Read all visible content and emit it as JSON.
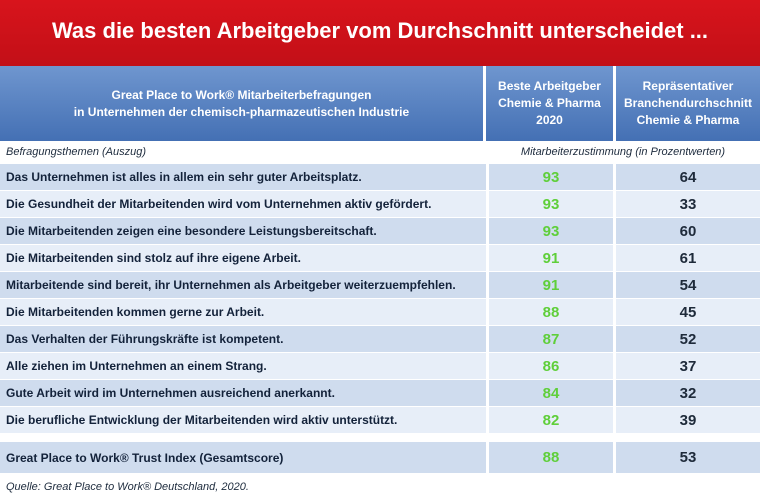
{
  "title": "Was die besten Arbeitgeber vom Durchschnitt unterscheidet ...",
  "header": {
    "col1_lines": [
      "Great Place to Work® Mitarbeiterbefragungen",
      "in Unternehmen der chemisch-pharmazeutischen Industrie"
    ],
    "col2_lines": [
      "Beste Arbeitgeber",
      "Chemie & Pharma",
      "2020"
    ],
    "col3_lines": [
      "Repräsentativer",
      "Branchendurchschnitt",
      "Chemie & Pharma"
    ]
  },
  "subheader": {
    "topics": "Befragungsthemen (Auszug)",
    "values": "Mitarbeiterzustimmung (in Prozentwerten)"
  },
  "source": "Quelle: Great Place to Work® Deutschland, 2020.",
  "colors": {
    "title_bg": "#d8141c",
    "header_bg": "#4f7cc0",
    "best_value": "#5fcf3a",
    "row_dark": "#cfdcee",
    "row_light": "#e7eef8"
  },
  "chart_data": {
    "type": "table",
    "columns": [
      "Beste Arbeitgeber Chemie & Pharma 2020",
      "Repräsentativer Branchendurchschnitt Chemie & Pharma"
    ],
    "rows": [
      {
        "label": "Das Unternehmen ist alles in allem ein sehr guter Arbeitsplatz.",
        "best": 93,
        "avg": 64
      },
      {
        "label": "Die Gesundheit der Mitarbeitenden wird vom Unternehmen aktiv gefördert.",
        "best": 93,
        "avg": 33
      },
      {
        "label": "Die Mitarbeitenden zeigen eine besondere Leistungsbereitschaft.",
        "best": 93,
        "avg": 60
      },
      {
        "label": "Die Mitarbeitenden sind stolz auf ihre eigene Arbeit.",
        "best": 91,
        "avg": 61
      },
      {
        "label": "Mitarbeitende sind bereit, ihr Unternehmen als Arbeitgeber weiterzuempfehlen.",
        "best": 91,
        "avg": 54
      },
      {
        "label": "Die Mitarbeitenden kommen gerne zur Arbeit.",
        "best": 88,
        "avg": 45
      },
      {
        "label": "Das Verhalten der Führungskräfte ist kompetent.",
        "best": 87,
        "avg": 52
      },
      {
        "label": "Alle ziehen im Unternehmen an einem Strang.",
        "best": 86,
        "avg": 37
      },
      {
        "label": "Gute Arbeit wird im Unternehmen ausreichend anerkannt.",
        "best": 84,
        "avg": 32
      },
      {
        "label": "Die berufliche Entwicklung der Mitarbeitenden wird aktiv unterstützt.",
        "best": 82,
        "avg": 39
      }
    ],
    "total": {
      "label": "Great Place to Work® Trust Index (Gesamtscore)",
      "best": 88,
      "avg": 53
    }
  }
}
